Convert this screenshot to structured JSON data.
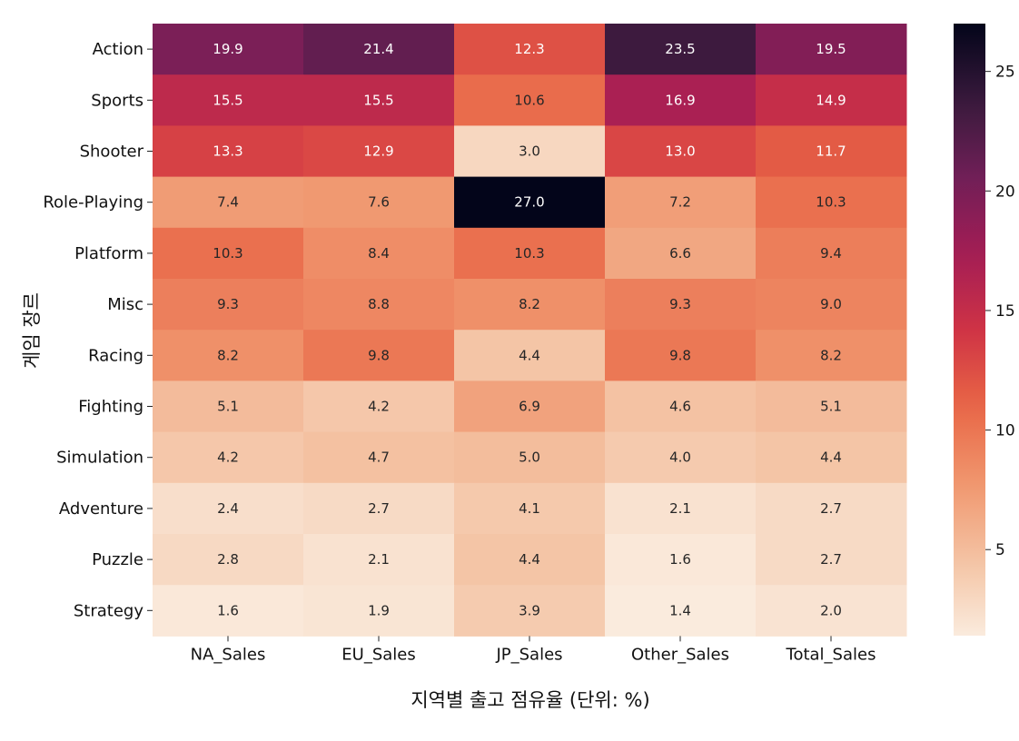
{
  "chart_data": {
    "type": "heatmap",
    "title": "",
    "xlabel": "지역별 출고 점유율 (단위: %)",
    "ylabel": "게임 장르",
    "columns": [
      "NA_Sales",
      "EU_Sales",
      "JP_Sales",
      "Other_Sales",
      "Total_Sales"
    ],
    "rows": [
      "Action",
      "Sports",
      "Shooter",
      "Role-Playing",
      "Platform",
      "Misc",
      "Racing",
      "Fighting",
      "Simulation",
      "Adventure",
      "Puzzle",
      "Strategy"
    ],
    "values": [
      [
        19.9,
        21.4,
        12.3,
        23.5,
        19.5
      ],
      [
        15.5,
        15.5,
        10.6,
        16.9,
        14.9
      ],
      [
        13.3,
        12.9,
        3.0,
        13.0,
        11.7
      ],
      [
        7.4,
        7.6,
        27.0,
        7.2,
        10.3
      ],
      [
        10.3,
        8.4,
        10.3,
        6.6,
        9.4
      ],
      [
        9.3,
        8.8,
        8.2,
        9.3,
        9.0
      ],
      [
        8.2,
        9.8,
        4.4,
        9.8,
        8.2
      ],
      [
        5.1,
        4.2,
        6.9,
        4.6,
        5.1
      ],
      [
        4.2,
        4.7,
        5.0,
        4.0,
        4.4
      ],
      [
        2.4,
        2.7,
        4.1,
        2.1,
        2.7
      ],
      [
        2.8,
        2.1,
        4.4,
        1.6,
        2.7
      ],
      [
        1.6,
        1.9,
        3.9,
        1.4,
        2.0
      ]
    ],
    "cell_value_format": "0.0",
    "colormap": "rocket_r",
    "colorbar": {
      "min": 1.4,
      "max": 27.0,
      "ticks": [
        5,
        10,
        15,
        20,
        25
      ],
      "tick_labels": [
        "5",
        "10",
        "15",
        "20",
        "25"
      ]
    },
    "colors": {
      "low": "#faebdd",
      "high": "#03051a",
      "annotation_dark": "#262626",
      "annotation_light": "#ffffff"
    }
  }
}
